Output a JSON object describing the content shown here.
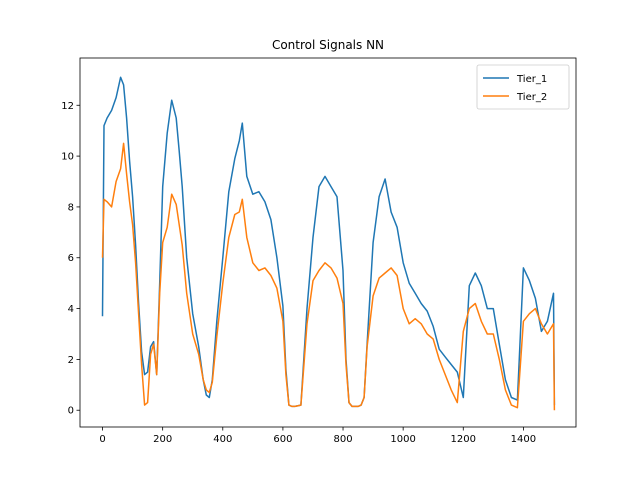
{
  "chart_data": {
    "type": "line",
    "title": "Control Signals NN",
    "xlabel": "",
    "ylabel": "",
    "xlim": [
      -75,
      1575
    ],
    "ylim": [
      -0.66,
      13.86
    ],
    "xticks": [
      0,
      200,
      400,
      600,
      800,
      1000,
      1200,
      1400
    ],
    "yticks": [
      0,
      2,
      4,
      6,
      8,
      10,
      12
    ],
    "grid": false,
    "legend_position": "top-right",
    "series": [
      {
        "name": "Tier_1",
        "color": "#1f77b4",
        "x": [
          0,
          5,
          15,
          30,
          45,
          60,
          70,
          80,
          90,
          100,
          110,
          120,
          130,
          140,
          150,
          160,
          170,
          180,
          190,
          200,
          215,
          230,
          245,
          255,
          265,
          280,
          300,
          320,
          335,
          345,
          355,
          365,
          380,
          400,
          420,
          440,
          455,
          465,
          480,
          500,
          520,
          540,
          560,
          580,
          600,
          610,
          620,
          630,
          640,
          660,
          680,
          700,
          720,
          740,
          760,
          780,
          800,
          810,
          820,
          830,
          840,
          850,
          860,
          870,
          880,
          900,
          920,
          940,
          960,
          980,
          1000,
          1020,
          1040,
          1060,
          1080,
          1100,
          1120,
          1140,
          1160,
          1180,
          1200,
          1220,
          1240,
          1260,
          1280,
          1300,
          1320,
          1340,
          1360,
          1380,
          1400,
          1420,
          1440,
          1460,
          1480,
          1500,
          1503
        ],
        "y": [
          3.7,
          11.2,
          11.5,
          11.8,
          12.3,
          13.1,
          12.8,
          11.5,
          9.8,
          8.4,
          6.5,
          4.2,
          2.3,
          1.4,
          1.5,
          2.5,
          2.7,
          1.4,
          5.0,
          8.8,
          10.9,
          12.2,
          11.5,
          10.2,
          8.8,
          6.0,
          3.8,
          2.5,
          1.2,
          0.6,
          0.5,
          1.2,
          3.5,
          6.0,
          8.6,
          9.9,
          10.6,
          11.3,
          9.2,
          8.5,
          8.6,
          8.2,
          7.5,
          6.0,
          4.1,
          1.6,
          0.2,
          0.15,
          0.15,
          0.2,
          4.0,
          6.8,
          8.8,
          9.2,
          8.8,
          8.4,
          5.5,
          2.0,
          0.3,
          0.15,
          0.15,
          0.15,
          0.2,
          0.5,
          2.6,
          6.6,
          8.4,
          9.1,
          7.8,
          7.2,
          5.8,
          5.0,
          4.6,
          4.2,
          3.9,
          3.3,
          2.4,
          2.1,
          1.8,
          1.5,
          0.5,
          4.9,
          5.4,
          4.9,
          4.0,
          4.0,
          2.6,
          1.2,
          0.5,
          0.4,
          5.6,
          5.1,
          4.4,
          3.1,
          3.5,
          4.6,
          0.2
        ]
      },
      {
        "name": "Tier_2",
        "color": "#ff7f0e",
        "x": [
          0,
          5,
          15,
          30,
          45,
          60,
          70,
          80,
          90,
          100,
          110,
          120,
          130,
          140,
          150,
          160,
          170,
          180,
          190,
          200,
          215,
          230,
          245,
          255,
          265,
          280,
          300,
          320,
          335,
          345,
          355,
          365,
          380,
          400,
          420,
          440,
          455,
          465,
          480,
          500,
          520,
          540,
          560,
          580,
          600,
          610,
          620,
          630,
          640,
          660,
          680,
          700,
          720,
          740,
          760,
          780,
          800,
          810,
          820,
          830,
          840,
          850,
          860,
          870,
          880,
          900,
          920,
          940,
          960,
          980,
          1000,
          1020,
          1040,
          1060,
          1080,
          1100,
          1120,
          1140,
          1160,
          1180,
          1200,
          1220,
          1240,
          1260,
          1280,
          1300,
          1320,
          1340,
          1360,
          1380,
          1400,
          1420,
          1440,
          1460,
          1480,
          1500,
          1503
        ],
        "y": [
          6.0,
          8.3,
          8.2,
          8.0,
          9.0,
          9.5,
          10.5,
          9.3,
          8.2,
          7.3,
          5.8,
          3.8,
          1.8,
          0.2,
          0.3,
          2.2,
          2.6,
          1.4,
          4.6,
          6.6,
          7.2,
          8.5,
          8.1,
          7.3,
          6.5,
          4.6,
          3.0,
          2.2,
          1.2,
          0.8,
          0.7,
          1.1,
          2.9,
          5.0,
          6.8,
          7.7,
          7.8,
          8.3,
          6.8,
          5.8,
          5.5,
          5.6,
          5.3,
          4.8,
          3.5,
          1.4,
          0.2,
          0.15,
          0.15,
          0.2,
          3.4,
          5.1,
          5.5,
          5.8,
          5.6,
          5.2,
          4.2,
          1.8,
          0.3,
          0.15,
          0.15,
          0.15,
          0.2,
          0.5,
          2.5,
          4.5,
          5.2,
          5.4,
          5.6,
          5.3,
          4.0,
          3.4,
          3.6,
          3.4,
          3.0,
          2.8,
          2.0,
          1.4,
          0.8,
          0.3,
          3.1,
          4.0,
          4.2,
          3.5,
          3.0,
          3.0,
          2.0,
          0.8,
          0.2,
          0.1,
          3.5,
          3.8,
          4.0,
          3.4,
          3.0,
          3.4,
          0.0
        ]
      }
    ]
  }
}
